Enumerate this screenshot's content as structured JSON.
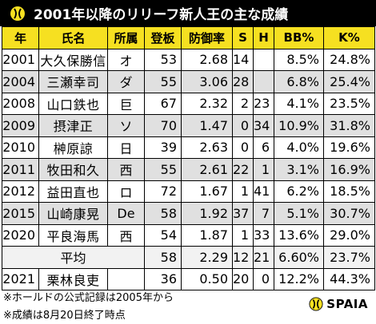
{
  "title": "2001年以降のリリーフ新人王の主な成績",
  "headers": [
    "年",
    "氏名",
    "所属",
    "登板",
    "防御率",
    "S",
    "H",
    "BB%",
    "K%"
  ],
  "rows": [
    [
      "2001",
      "大久保勝信",
      "オ",
      "53",
      "2.68",
      "14",
      "",
      "8.5%",
      "24.8%"
    ],
    [
      "2004",
      "三瀬幸司",
      "ダ",
      "55",
      "3.06",
      "28",
      "",
      "6.8%",
      "25.4%"
    ],
    [
      "2008",
      "山口鉄也",
      "巨",
      "67",
      "2.32",
      "2",
      "23",
      "4.1%",
      "23.5%"
    ],
    [
      "2009",
      "摂津正",
      "ソ",
      "70",
      "1.47",
      "0",
      "34",
      "10.9%",
      "31.8%"
    ],
    [
      "2010",
      "榊原諒",
      "日",
      "39",
      "2.63",
      "0",
      "6",
      "4.0%",
      "19.6%"
    ],
    [
      "2011",
      "牧田和久",
      "西",
      "55",
      "2.61",
      "22",
      "1",
      "3.1%",
      "16.9%"
    ],
    [
      "2012",
      "益田直也",
      "ロ",
      "72",
      "1.67",
      "1",
      "41",
      "6.2%",
      "18.5%"
    ],
    [
      "2015",
      "山崎康晃",
      "De",
      "58",
      "1.92",
      "37",
      "7",
      "5.1%",
      "30.7%"
    ],
    [
      "2020",
      "平良海馬",
      "西",
      "54",
      "1.87",
      "1",
      "33",
      "13.6%",
      "29.0%"
    ]
  ],
  "average": {
    "label": "平均",
    "values": [
      "58",
      "2.29",
      "12",
      "21",
      "6.60%",
      "23.7%"
    ]
  },
  "final_row": [
    "2021",
    "栗林良吏",
    "",
    "36",
    "0.50",
    "20",
    "0",
    "12.2%",
    "44.3%"
  ],
  "footnotes": [
    "※ホールドの公式記録は2005年から",
    "※成績は8月20日終了時点"
  ],
  "brand": "SPAIA",
  "colors": {
    "header_bg": "#f6e021",
    "title_bg": "#000000",
    "stripe": "#e0e0e0"
  }
}
